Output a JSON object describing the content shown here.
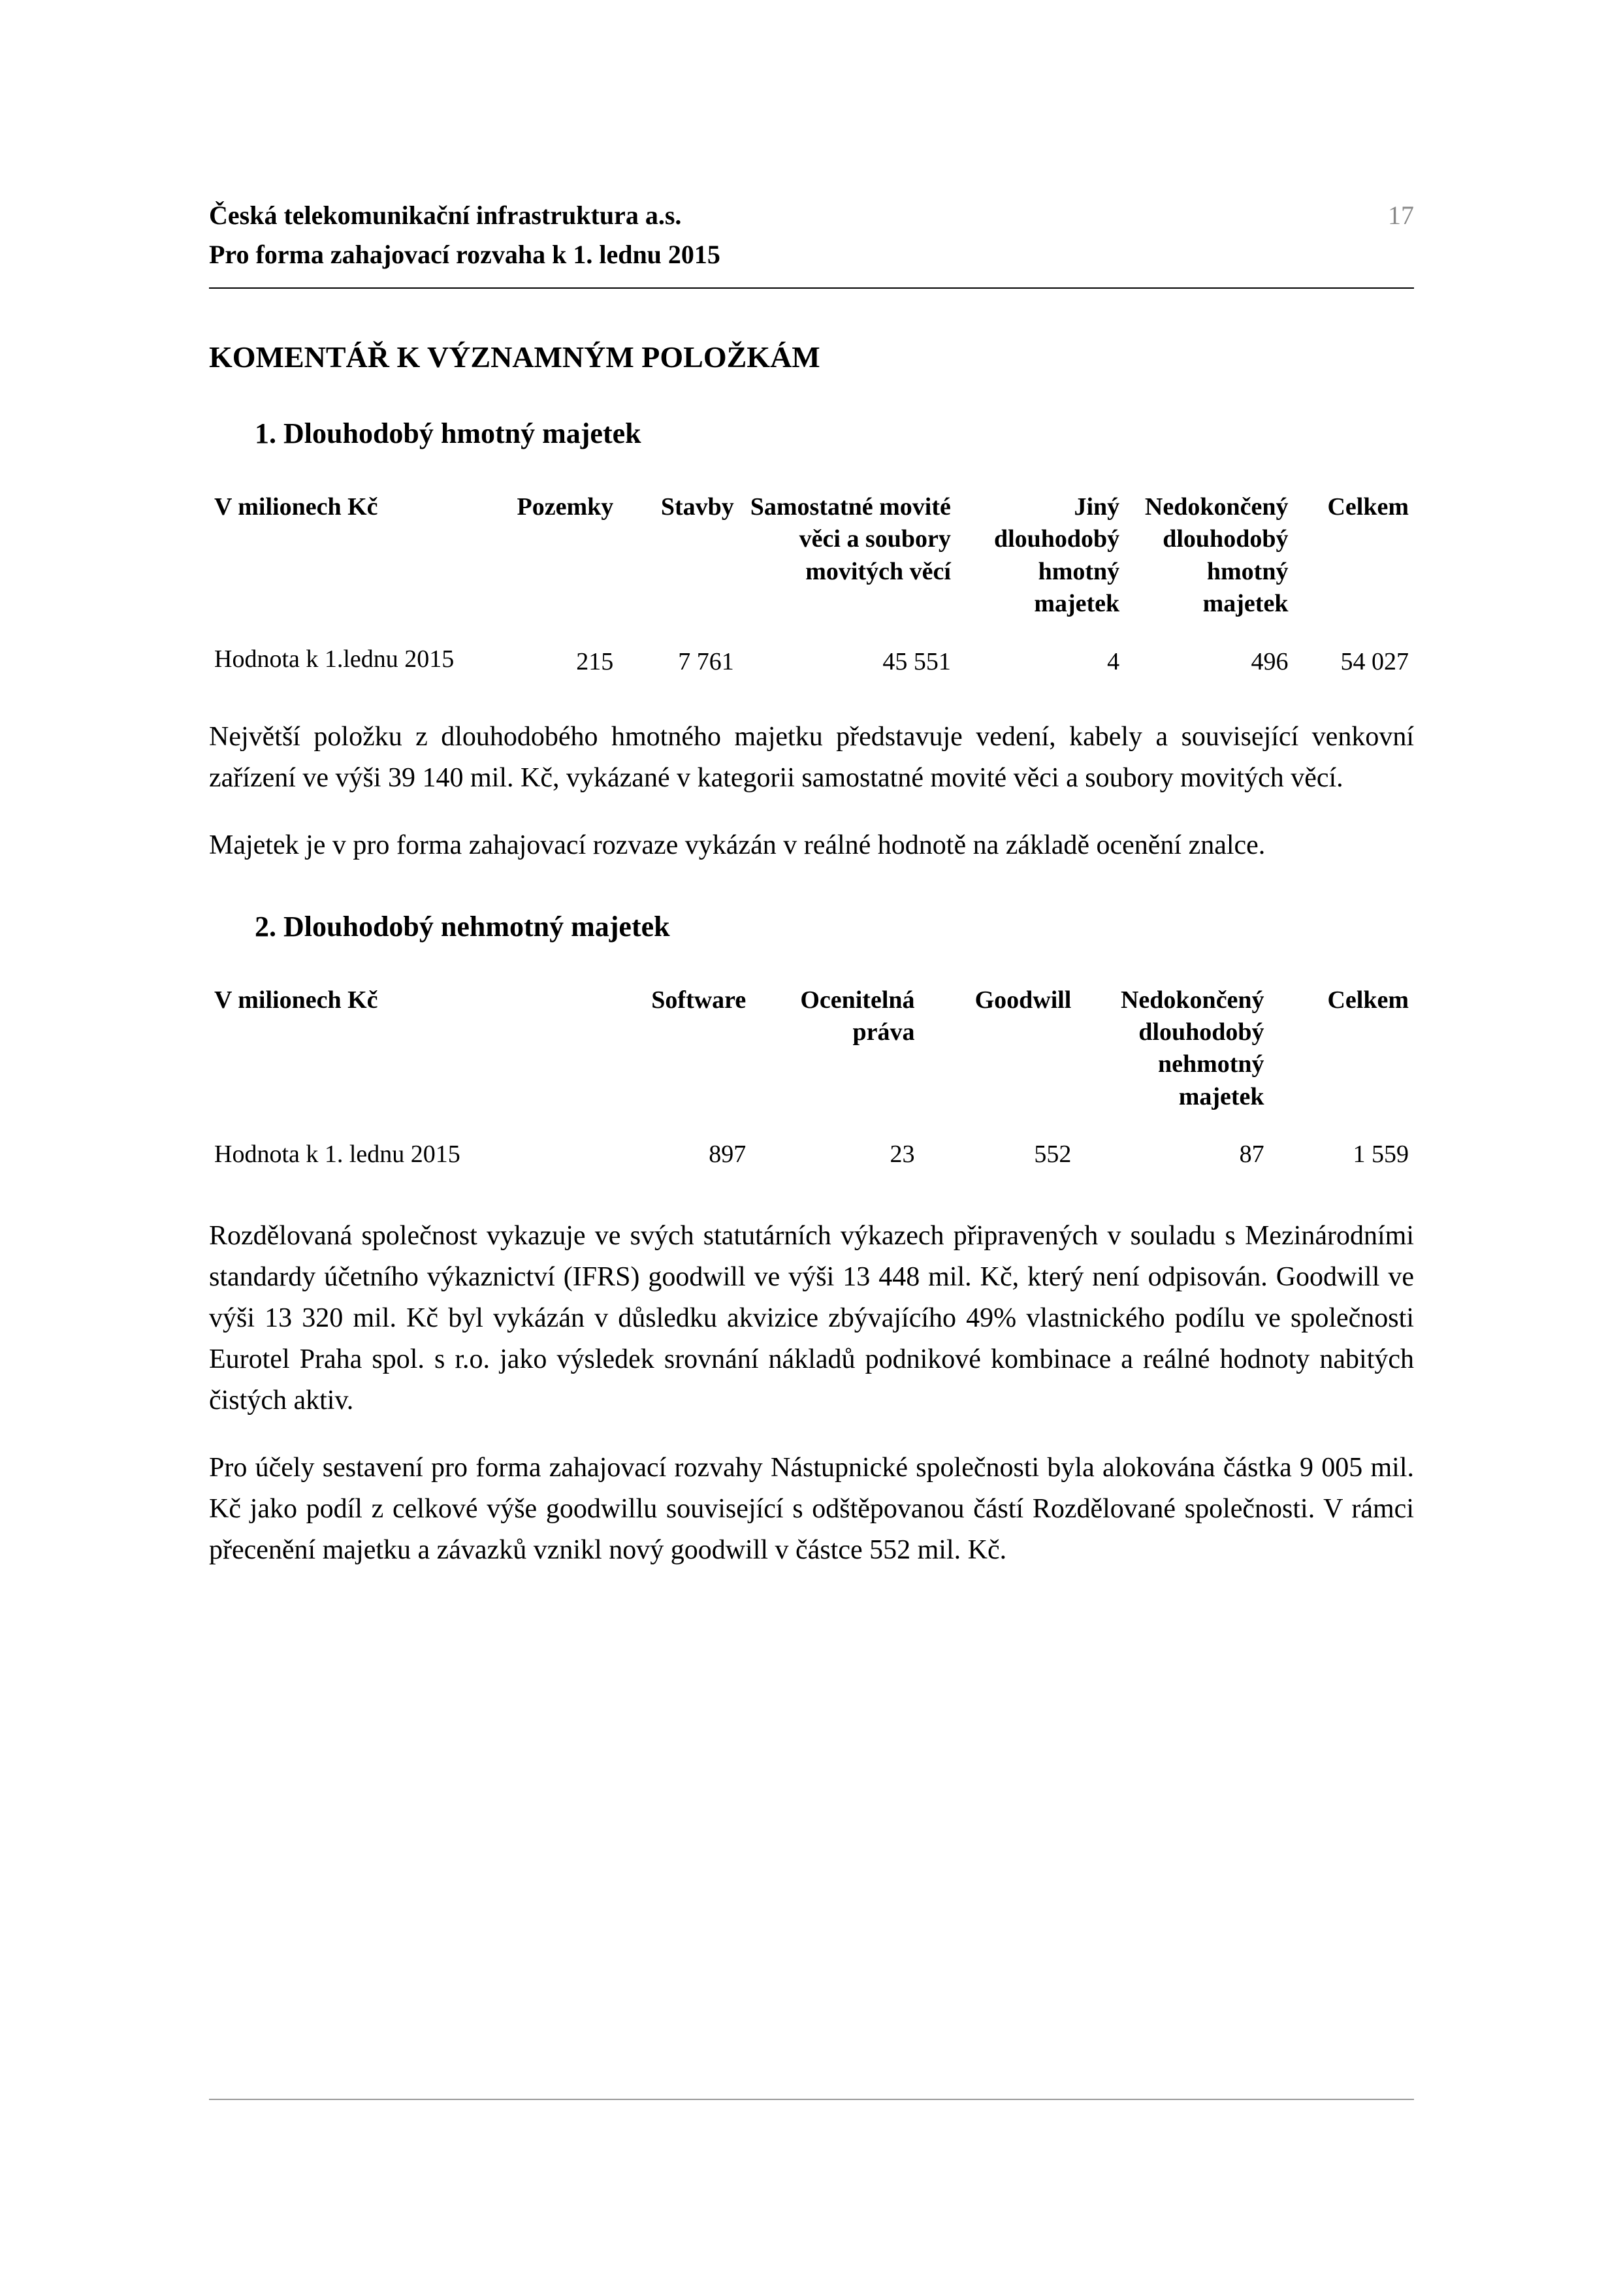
{
  "page_number": "17",
  "header": {
    "line1": "Česká telekomunikační infrastruktura a.s.",
    "line2": "Pro forma zahajovací rozvaha k 1. lednu 2015"
  },
  "main_heading": "KOMENTÁŘ K VÝZNAMNÝM POLOŽKÁM",
  "section1": {
    "heading": "1. Dlouhodobý hmotný majetek",
    "table": {
      "headers": {
        "c1": "V milionech Kč",
        "c2": "Pozemky",
        "c3": "Stavby",
        "c4": "Samostatné movité věci a soubory movitých věcí",
        "c5": "Jiný dlouhodobý hmotný majetek",
        "c6": "Nedokončený dlouhodobý hmotný majetek",
        "c7": "Celkem"
      },
      "row": {
        "label": "Hodnota k 1.lednu 2015",
        "v2": "215",
        "v3": "7 761",
        "v4": "45 551",
        "v5": "4",
        "v6": "496",
        "v7": "54 027"
      }
    },
    "para1": "Největší položku z dlouhodobého hmotného majetku představuje vedení, kabely a související venkovní zařízení ve výši 39 140 mil. Kč, vykázané v kategorii samostatné movité věci a soubory movitých věcí.",
    "para2": "Majetek je v pro forma zahajovací rozvaze vykázán v reálné hodnotě na základě ocenění znalce."
  },
  "section2": {
    "heading": "2. Dlouhodobý nehmotný majetek",
    "table": {
      "headers": {
        "c1": "V milionech Kč",
        "c2": "Software",
        "c3": "Ocenitelná práva",
        "c4": "Goodwill",
        "c5": "Nedokončený dlouhodobý nehmotný majetek",
        "c6": "Celkem"
      },
      "row": {
        "label": "Hodnota k 1. lednu 2015",
        "v2": "897",
        "v3": "23",
        "v4": "552",
        "v5": "87",
        "v6": "1 559"
      }
    },
    "para1": "Rozdělovaná společnost vykazuje ve svých statutárních výkazech připravených v souladu s Mezinárodními standardy účetního výkaznictví (IFRS) goodwill ve výši 13 448 mil. Kč, který není odpisován. Goodwill ve výši 13 320 mil. Kč byl vykázán v důsledku akvizice zbývajícího 49% vlastnického podílu ve společnosti Eurotel Praha spol. s r.o. jako výsledek srovnání nákladů podnikové kombinace a reálné hodnoty nabitých čistých aktiv.",
    "para2": "Pro účely sestavení pro forma zahajovací rozvahy Nástupnické společnosti byla alokována částka 9 005 mil. Kč jako podíl z celkové výše goodwillu související s odštěpovanou částí Rozdělované společnosti. V rámci přecenění majetku a závazků vznikl nový goodwill v částce 552 mil. Kč."
  },
  "colors": {
    "text": "#000000",
    "background": "#ffffff",
    "divider": "#000000",
    "footer_divider": "#999999",
    "page_number": "#888888"
  },
  "typography": {
    "body_fontsize": 42,
    "header_fontsize": 40,
    "heading_fontsize": 46,
    "subheading_fontsize": 44,
    "table_fontsize": 38,
    "font_family": "Times New Roman"
  }
}
